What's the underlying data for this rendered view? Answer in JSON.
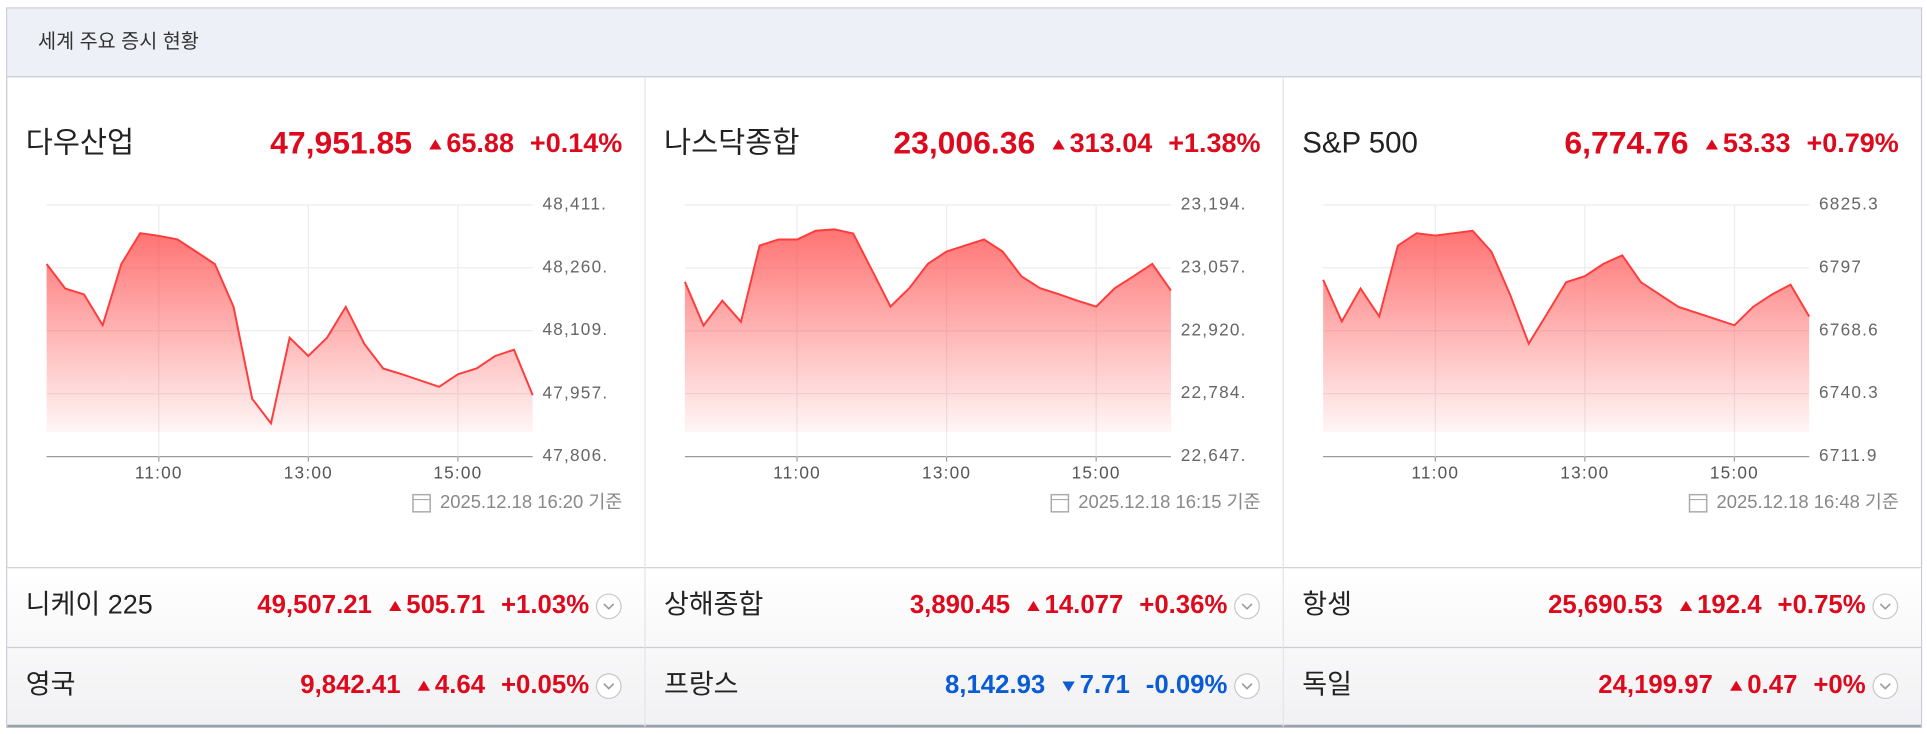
{
  "header": {
    "title": "세계 주요 증시 현황"
  },
  "chart_data": [
    {
      "type": "line",
      "name": "다우산업",
      "price": "47,951.85",
      "change": "65.88",
      "change_pct": "+0.14%",
      "direction": "up",
      "timestamp": "2025.12.18 16:20 기준",
      "x": [
        9.5,
        9.75,
        10,
        10.25,
        10.5,
        10.75,
        11,
        11.25,
        11.5,
        11.75,
        12,
        12.25,
        12.5,
        12.75,
        13,
        13.25,
        13.5,
        13.75,
        14,
        14.25,
        14.5,
        14.75,
        15,
        15.25,
        15.5,
        15.75,
        16
      ],
      "xlim": [
        9.5,
        16
      ],
      "xticks": [
        {
          "value": 11,
          "label": "11:00"
        },
        {
          "value": 13,
          "label": "13:00"
        },
        {
          "value": 15,
          "label": "15:00"
        }
      ],
      "ylim": [
        47806,
        48411
      ],
      "yticks": [
        {
          "value": 48411,
          "label": "48,411."
        },
        {
          "value": 48260,
          "label": "48,260."
        },
        {
          "value": 48109,
          "label": "48,109."
        },
        {
          "value": 47957,
          "label": "47,957."
        },
        {
          "value": 47806,
          "label": "47,806."
        }
      ],
      "grid": true,
      "series": [
        {
          "color": "#ff3b3b",
          "values": [
            48269,
            48210,
            48196,
            48122,
            48269,
            48343,
            48337,
            48328,
            48299,
            48269,
            48166,
            47945,
            47886,
            48092,
            48048,
            48092,
            48166,
            48077,
            48018,
            48004,
            47989,
            47974,
            48004,
            48018,
            48048,
            48063,
            47954
          ]
        }
      ]
    },
    {
      "type": "line",
      "name": "나스닥종합",
      "price": "23,006.36",
      "change": "313.04",
      "change_pct": "+1.38%",
      "direction": "up",
      "timestamp": "2025.12.18 16:15 기준",
      "x": [
        9.5,
        9.75,
        10,
        10.25,
        10.5,
        10.75,
        11,
        11.25,
        11.5,
        11.75,
        12,
        12.25,
        12.5,
        12.75,
        13,
        13.25,
        13.5,
        13.75,
        14,
        14.25,
        14.5,
        14.75,
        15,
        15.25,
        15.5,
        15.75,
        16
      ],
      "xlim": [
        9.5,
        16
      ],
      "xticks": [
        {
          "value": 11,
          "label": "11:00"
        },
        {
          "value": 13,
          "label": "13:00"
        },
        {
          "value": 15,
          "label": "15:00"
        }
      ],
      "ylim": [
        22647,
        23194
      ],
      "yticks": [
        {
          "value": 23194,
          "label": "23,194."
        },
        {
          "value": 23057,
          "label": "23,057."
        },
        {
          "value": 22920,
          "label": "22,920."
        },
        {
          "value": 22784,
          "label": "22,784."
        },
        {
          "value": 22647,
          "label": "22,647."
        }
      ],
      "grid": true,
      "series": [
        {
          "color": "#ff3b3b",
          "values": [
            23027,
            22932,
            22986,
            22940,
            23106,
            23119,
            23119,
            23138,
            23141,
            23132,
            23053,
            22973,
            23013,
            23066,
            23093,
            23106,
            23119,
            23093,
            23039,
            23013,
            23000,
            22986,
            22973,
            23013,
            23039,
            23066,
            23008
          ]
        }
      ]
    },
    {
      "type": "line",
      "name": "S&P 500",
      "price": "6,774.76",
      "change": "53.33",
      "change_pct": "+0.79%",
      "direction": "up",
      "timestamp": "2025.12.18 16:48 기준",
      "x": [
        9.5,
        9.75,
        10,
        10.25,
        10.5,
        10.75,
        11,
        11.25,
        11.5,
        11.75,
        12,
        12.25,
        12.5,
        12.75,
        13,
        13.25,
        13.5,
        13.75,
        14,
        14.25,
        14.5,
        14.75,
        15,
        15.25,
        15.5,
        15.75,
        16
      ],
      "xlim": [
        9.5,
        16
      ],
      "xticks": [
        {
          "value": 11,
          "label": "11:00"
        },
        {
          "value": 13,
          "label": "13:00"
        },
        {
          "value": 15,
          "label": "15:00"
        }
      ],
      "ylim": [
        6711.9,
        6825.3
      ],
      "yticks": [
        6825.3,
        6797.0,
        6768.6,
        6740.3,
        6711.9
      ],
      "grid": true,
      "series": [
        {
          "color": "#ff3b3b",
          "values": [
            6791.6,
            6772.8,
            6787.7,
            6775.0,
            6807.0,
            6812.6,
            6811.5,
            6812.6,
            6813.7,
            6804.3,
            6784.9,
            6762.8,
            6776.6,
            6790.5,
            6793.2,
            6798.8,
            6802.6,
            6790.5,
            6784.9,
            6779.4,
            6776.6,
            6773.9,
            6771.1,
            6779.4,
            6784.9,
            6789.4,
            6775.0
          ]
        }
      ]
    }
  ],
  "rows": [
    [
      {
        "name": "니케이 225",
        "price": "49,507.21",
        "change": "505.71",
        "change_pct": "+1.03%",
        "direction": "up"
      },
      {
        "name": "상해종합",
        "price": "3,890.45",
        "change": "14.077",
        "change_pct": "+0.36%",
        "direction": "up"
      },
      {
        "name": "항셍",
        "price": "25,690.53",
        "change": "192.4",
        "change_pct": "+0.75%",
        "direction": "up"
      }
    ],
    [
      {
        "name": "영국",
        "price": "9,842.41",
        "change": "4.64",
        "change_pct": "+0.05%",
        "direction": "up"
      },
      {
        "name": "프랑스",
        "price": "8,142.93",
        "change": "7.71",
        "change_pct": "-0.09%",
        "direction": "down"
      },
      {
        "name": "독일",
        "price": "24,199.97",
        "change": "0.47",
        "change_pct": "+0%",
        "direction": "up"
      }
    ]
  ]
}
